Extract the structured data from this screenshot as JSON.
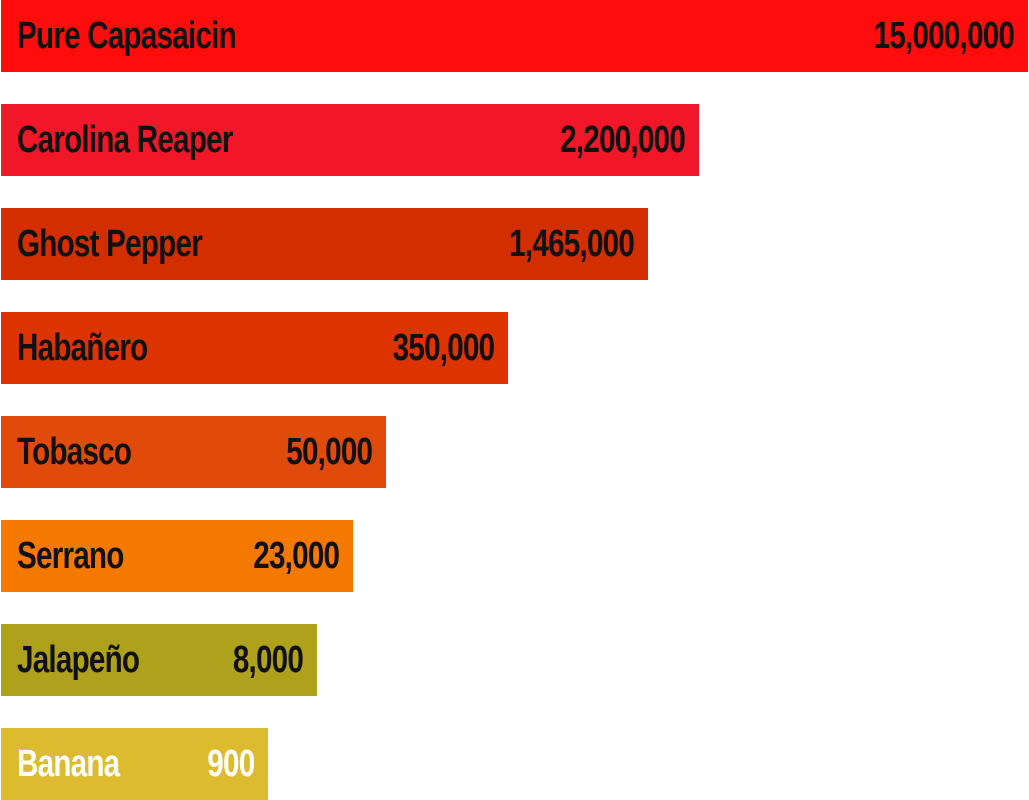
{
  "chart_data": {
    "type": "bar",
    "orientation": "horizontal",
    "categories": [
      "Pure Capasaicin",
      "Carolina Reaper",
      "Ghost Pepper",
      "Habañero",
      "Tobasco",
      "Serrano",
      "Jalapeño",
      "Banana"
    ],
    "values": [
      15000000,
      2200000,
      1465000,
      350000,
      50000,
      23000,
      8000,
      900
    ],
    "value_labels": [
      "15,000,000",
      "2,200,000",
      "1,465,000",
      "350,000",
      "50,000",
      "23,000",
      "8,000",
      "900"
    ],
    "bar_colors": [
      "#ff0d0d",
      "#f21728",
      "#d22e00",
      "#dd3300",
      "#e04a0b",
      "#f57900",
      "#aea11b",
      "#dcbc2e"
    ],
    "text_colors": [
      "#111111",
      "#111111",
      "#111111",
      "#111111",
      "#111111",
      "#111111",
      "#111111",
      "#ffffff"
    ],
    "title": "",
    "xlabel": "",
    "ylabel": "",
    "grid": false,
    "legend": "none"
  }
}
